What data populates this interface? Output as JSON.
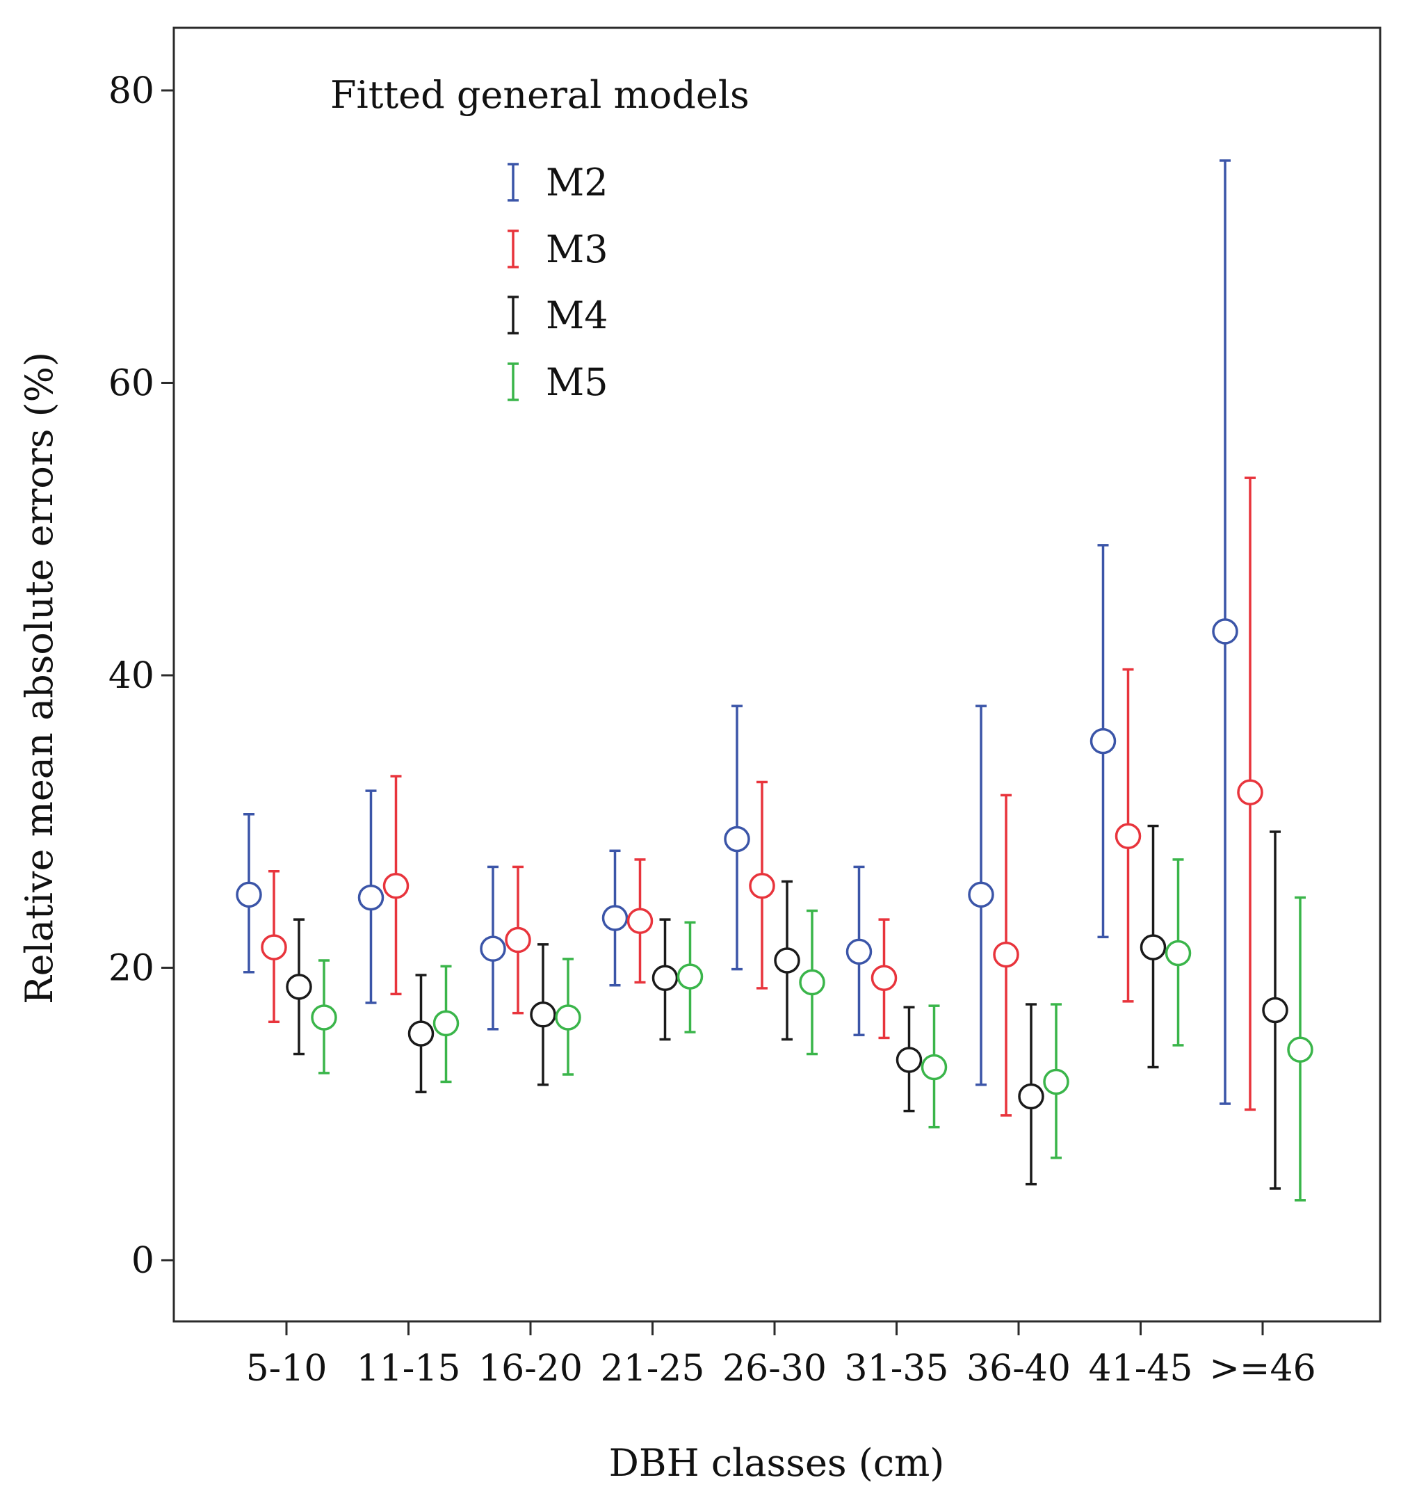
{
  "chart_data": {
    "type": "errorbar",
    "title": "",
    "xlabel": "DBH classes (cm)",
    "ylabel": "Relative mean absolute errors (%)",
    "ylim": [
      -4,
      84
    ],
    "yticks": [
      0,
      20,
      40,
      60,
      80
    ],
    "categories": [
      "5-10",
      "11-15",
      "16-20",
      "21-25",
      "26-30",
      "31-35",
      "36-40",
      "41-45",
      ">=46"
    ],
    "legend": {
      "title": "Fitted general models",
      "placement": "top-left"
    },
    "series": [
      {
        "name": "M2",
        "color": "#3b55a8",
        "means": [
          25.0,
          24.8,
          21.3,
          23.4,
          28.8,
          21.1,
          25.0,
          35.5,
          43.0
        ],
        "lower": [
          19.7,
          17.6,
          15.8,
          18.8,
          19.9,
          15.4,
          12.0,
          22.1,
          10.7
        ],
        "upper": [
          30.5,
          32.1,
          26.9,
          28.0,
          37.9,
          26.9,
          37.9,
          48.9,
          75.2
        ]
      },
      {
        "name": "M3",
        "color": "#e8343c",
        "means": [
          21.4,
          25.6,
          21.9,
          23.2,
          25.6,
          19.3,
          20.9,
          29.0,
          32.0
        ],
        "lower": [
          16.3,
          18.2,
          16.9,
          19.0,
          18.6,
          15.2,
          9.9,
          17.7,
          10.3
        ],
        "upper": [
          26.6,
          33.1,
          26.9,
          27.4,
          32.7,
          23.3,
          31.8,
          40.4,
          53.5
        ]
      },
      {
        "name": "M4",
        "color": "#1a1a1a",
        "means": [
          18.7,
          15.5,
          16.8,
          19.3,
          20.5,
          13.7,
          11.2,
          21.4,
          17.1
        ],
        "lower": [
          14.1,
          11.5,
          12.0,
          15.1,
          15.1,
          10.2,
          5.2,
          13.2,
          4.9
        ],
        "upper": [
          23.3,
          19.5,
          21.6,
          23.3,
          25.9,
          17.3,
          17.5,
          29.7,
          29.3
        ]
      },
      {
        "name": "M5",
        "color": "#3ab54a",
        "means": [
          16.6,
          16.2,
          16.6,
          19.4,
          19.0,
          13.2,
          12.2,
          21.0,
          14.4
        ],
        "lower": [
          12.8,
          12.2,
          12.7,
          15.6,
          14.1,
          9.1,
          7.0,
          14.7,
          4.1
        ],
        "upper": [
          20.5,
          20.1,
          20.6,
          23.1,
          23.9,
          17.4,
          17.5,
          27.4,
          24.8
        ]
      }
    ]
  }
}
